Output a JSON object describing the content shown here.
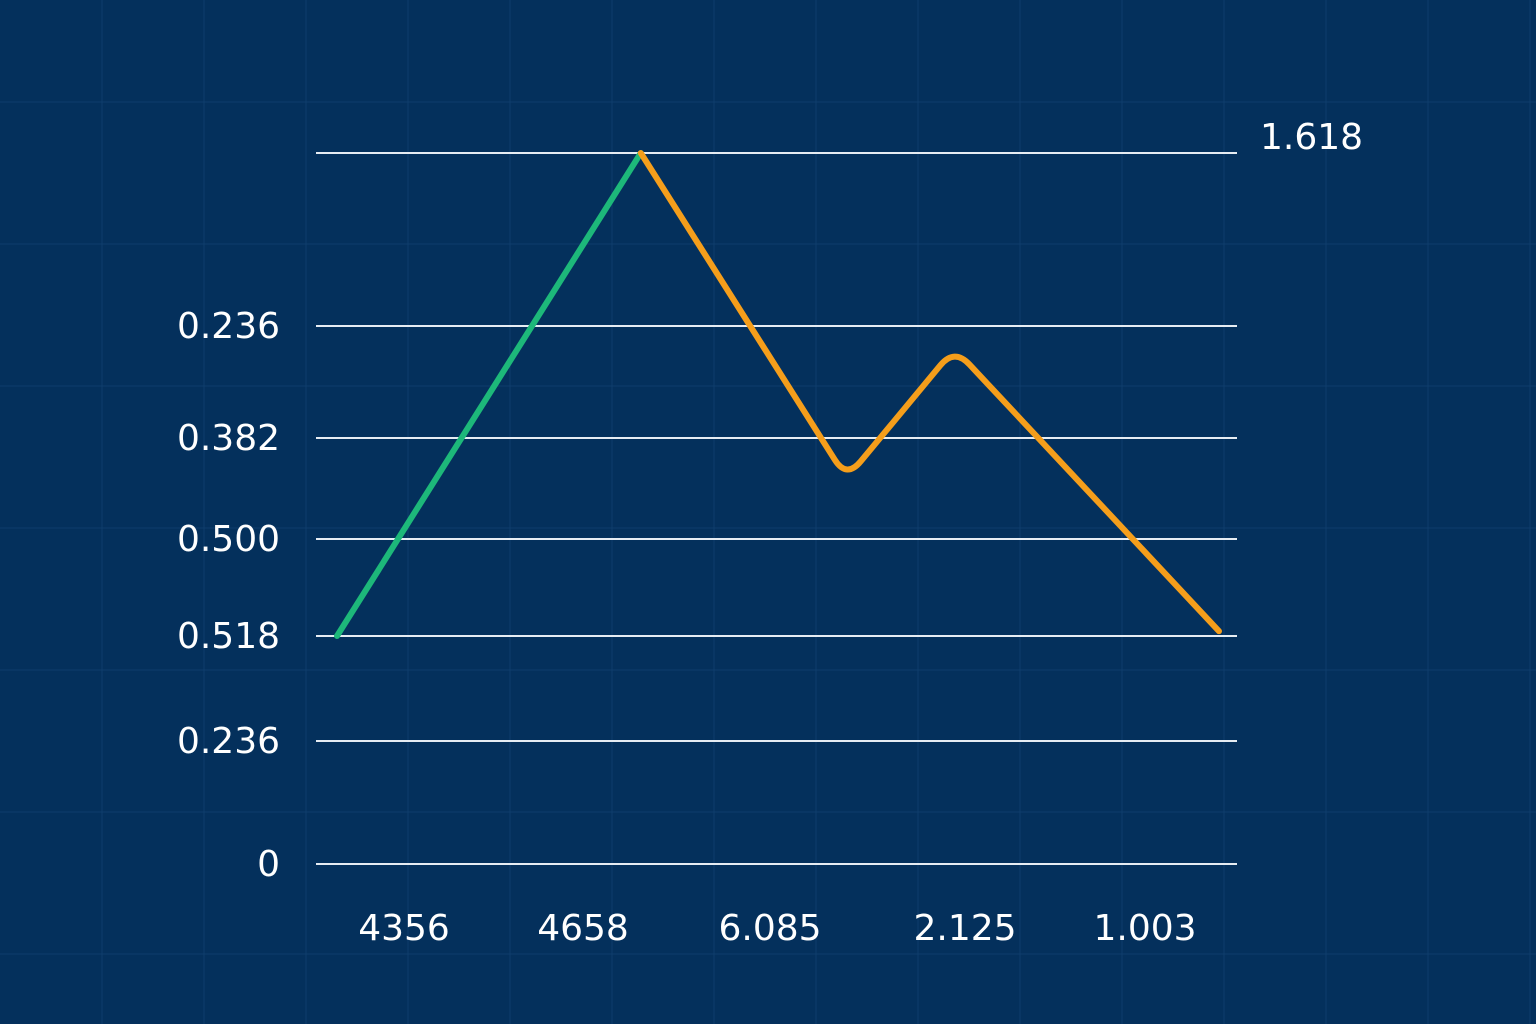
{
  "chart_data": {
    "type": "line",
    "title": "",
    "xlabel": "",
    "ylabel": "",
    "levels": [
      {
        "label": "1.618",
        "side": "right"
      },
      {
        "label": "0.236",
        "side": "left"
      },
      {
        "label": "0.382",
        "side": "left"
      },
      {
        "label": "0.500",
        "side": "left"
      },
      {
        "label": "0.518",
        "side": "left"
      },
      {
        "label": "0.236",
        "side": "left"
      },
      {
        "label": "0",
        "side": "left"
      }
    ],
    "x_ticks": [
      "4356",
      "4658",
      "6.085",
      "2.125",
      "1.003"
    ],
    "grid": true,
    "series": [
      {
        "color": "#1db87a",
        "points": [
          [
            0.0,
            4
          ],
          [
            1.55,
            0
          ]
        ]
      },
      {
        "color": "#f59e1b",
        "points": [
          [
            1.55,
            0
          ],
          [
            2.6,
            2.4
          ],
          [
            3.15,
            1.2
          ],
          [
            4.5,
            3.95
          ]
        ]
      }
    ]
  },
  "colors": {
    "background": "#04305c",
    "gridline": "#0e3d6c",
    "level_line": "#e6ecf3",
    "impulse": "#1db87a",
    "retrace": "#f59e1b",
    "text": "#ffffff"
  }
}
